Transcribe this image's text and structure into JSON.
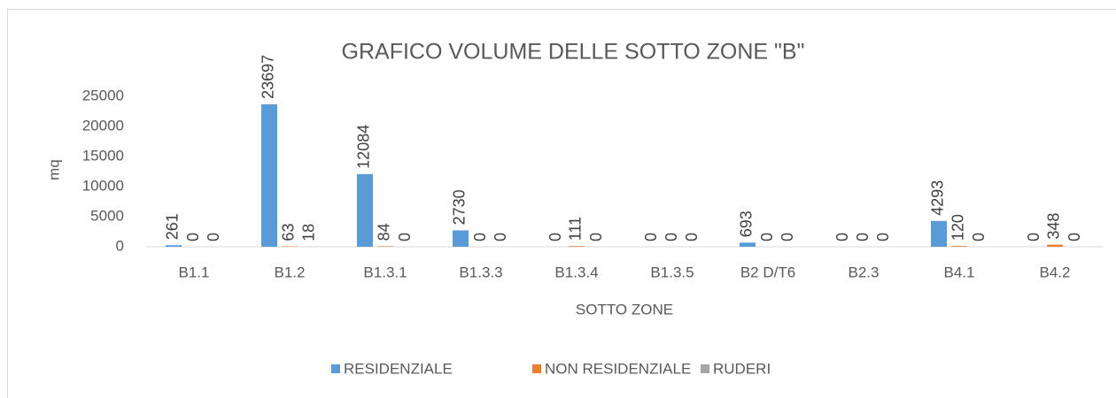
{
  "chart_data": {
    "type": "bar",
    "title": "GRAFICO VOLUME DELLE SOTTO ZONE \"B\"",
    "x_label": "SOTTO ZONE",
    "y_label": "mq",
    "categories": [
      "B1.1",
      "B1.2",
      "B1.3.1",
      "B1.3.3",
      "B1.3.4",
      "B1.3.5",
      "B2 D/T6",
      "B2.3",
      "B4.1",
      "B4.2"
    ],
    "series": [
      {
        "name": "RESIDENZIALE",
        "color": "#5b9bd5",
        "values": [
          261,
          23697,
          12084,
          2730,
          0,
          0,
          693,
          0,
          4293,
          0
        ]
      },
      {
        "name": "NON RESIDENZIALE",
        "color": "#ed7d31",
        "values": [
          0,
          63,
          84,
          0,
          111,
          0,
          0,
          0,
          120,
          348
        ]
      },
      {
        "name": "RUDERI",
        "color": "#a5a5a5",
        "values": [
          0,
          18,
          0,
          0,
          0,
          0,
          0,
          0,
          0,
          0
        ]
      }
    ],
    "ylim": [
      0,
      25000
    ],
    "yticks": [
      0,
      5000,
      10000,
      15000,
      20000,
      25000
    ],
    "grid": false,
    "legend": "bottom"
  }
}
